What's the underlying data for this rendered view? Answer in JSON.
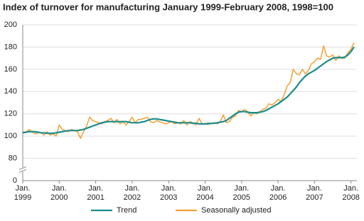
{
  "chart_data": {
    "type": "line",
    "title": "Index of turnover for manufacturing January 1999-February 2008, 1998=100",
    "categories": [
      "Jan. 1999",
      null,
      null,
      null,
      null,
      null,
      null,
      null,
      null,
      null,
      null,
      null,
      "Jan. 2000",
      null,
      null,
      null,
      null,
      null,
      null,
      null,
      null,
      null,
      null,
      null,
      "Jan. 2001",
      null,
      null,
      null,
      null,
      null,
      null,
      null,
      null,
      null,
      null,
      null,
      "Jan. 2002",
      null,
      null,
      null,
      null,
      null,
      null,
      null,
      null,
      null,
      null,
      null,
      "Jan. 2003",
      null,
      null,
      null,
      null,
      null,
      null,
      null,
      null,
      null,
      null,
      null,
      "Jan. 2004",
      null,
      null,
      null,
      null,
      null,
      null,
      null,
      null,
      null,
      null,
      null,
      "Jan. 2005",
      null,
      null,
      null,
      null,
      null,
      null,
      null,
      null,
      null,
      null,
      null,
      "Jan. 2006",
      null,
      null,
      null,
      null,
      null,
      null,
      null,
      null,
      null,
      null,
      null,
      "Jan. 2007",
      null,
      null,
      null,
      null,
      null,
      null,
      null,
      null,
      null,
      null,
      null,
      "Jan. 2008",
      null
    ],
    "series": [
      {
        "name": "Trend",
        "color": "#1a8c8c",
        "values": [
          103,
          103.5,
          104,
          104,
          104,
          103.5,
          103,
          103,
          102.5,
          102.5,
          102.5,
          103,
          103.5,
          104,
          104.5,
          105,
          105,
          105,
          105,
          105.5,
          106,
          107,
          108,
          109,
          110,
          111,
          112,
          112.5,
          113,
          113,
          113,
          113,
          113,
          113,
          113,
          112.5,
          112,
          112,
          112,
          112.5,
          113,
          114,
          115,
          115.5,
          115.5,
          115,
          114.5,
          114,
          113.5,
          113,
          112.5,
          112,
          112,
          112,
          112,
          112,
          111.5,
          111.5,
          111,
          111,
          111,
          111,
          111.5,
          111.5,
          112,
          112.5,
          113,
          114,
          116,
          118,
          120,
          121.5,
          122,
          122,
          121.5,
          121,
          121,
          121,
          121.5,
          122,
          123,
          124.5,
          126,
          127.5,
          129,
          131,
          133,
          135,
          138,
          141,
          144,
          148,
          151,
          154,
          156,
          157.5,
          159,
          161,
          163,
          165,
          167,
          168.5,
          170,
          170.5,
          170.5,
          170.5,
          171,
          173,
          176,
          180
        ]
      },
      {
        "name": "Seasonally adjusted",
        "color": "#f5a033",
        "values": [
          104,
          103,
          106,
          104,
          102,
          103,
          103,
          101,
          104,
          101,
          102,
          100,
          110,
          106,
          105,
          104,
          106,
          105,
          104,
          98,
          104,
          109,
          117,
          114,
          113,
          112,
          111,
          113,
          114,
          116,
          112,
          115,
          111,
          113,
          110,
          113,
          117,
          112,
          115,
          115,
          116,
          117,
          113,
          112,
          114,
          113,
          112,
          111,
          112,
          113,
          111,
          112,
          111,
          114,
          110,
          113,
          112,
          110,
          116,
          111,
          111,
          112,
          111,
          112,
          111,
          113,
          119,
          112,
          113,
          117,
          118,
          123,
          122,
          124,
          122,
          118,
          121,
          120,
          122,
          124,
          125,
          129,
          128,
          130,
          133,
          131,
          137,
          145,
          148,
          160,
          156,
          155,
          160,
          156,
          159,
          165,
          167,
          170,
          169,
          181,
          172,
          171,
          173,
          168,
          172,
          170,
          170,
          175,
          178,
          184
        ]
      }
    ],
    "ylim": [
      0,
      200
    ],
    "yticks": [
      0,
      80,
      100,
      120,
      140,
      160,
      180,
      200
    ],
    "y_break": [
      0,
      80
    ],
    "grid": true,
    "legend": "bottom"
  }
}
